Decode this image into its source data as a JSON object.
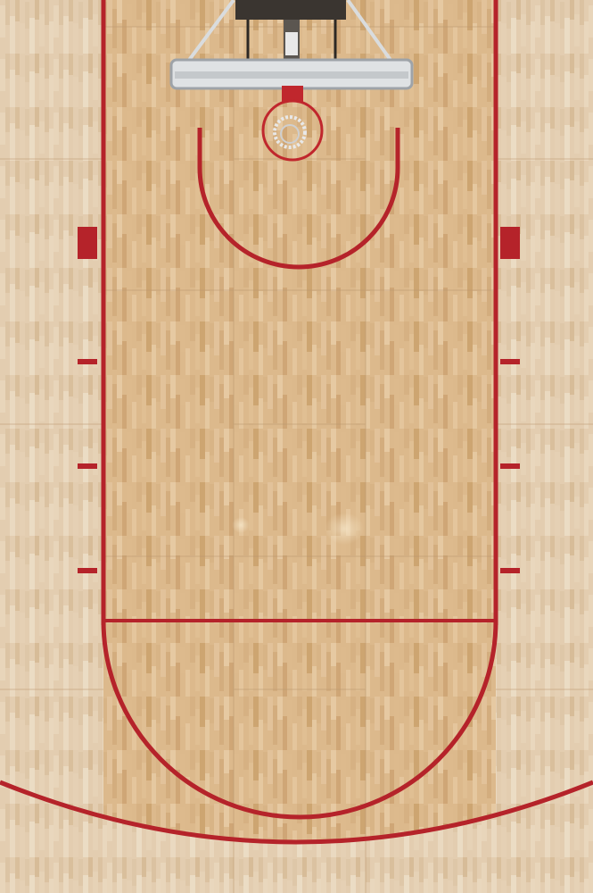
{
  "scene": {
    "description_free": true,
    "colors": {
      "wood_light": "#e2c6a0",
      "wood_mid": "#d4b083",
      "wood_dark": "#c49a6a",
      "wood_outer": "#e4cfb2",
      "line_red": "#b5232a",
      "panel_seam": "#b9966d",
      "backboard_rim": "#d9dcde",
      "backboard_frame": "#9ea3a8",
      "rim_red": "#c0272d",
      "net_white": "#e8e8e8",
      "support_dark": "#3a3530"
    },
    "icons": {
      "hoop": "basketball-hoop-icon",
      "backboard": "backboard-icon"
    }
  }
}
